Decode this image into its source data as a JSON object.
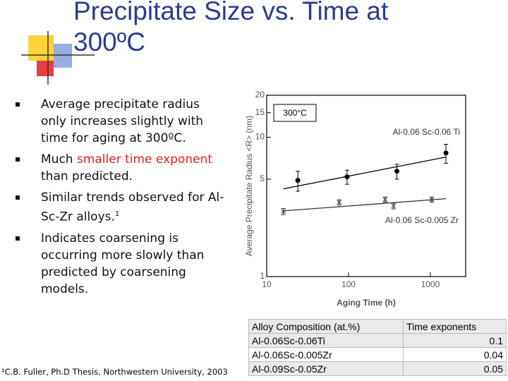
{
  "title": "Precipitate Size vs. Time at 300ºC",
  "bullets": [
    [
      "Average precipitate radius only increases slightly with time for aging at 300ºC."
    ],
    [
      "Much ",
      "smaller time exponent",
      " than predicted."
    ],
    [
      "Similar trends observed for Al-Sc-Zr alloys.",
      "1"
    ],
    [
      "Indicates coarsening is occurring more slowly than predicted by coarsening models."
    ]
  ],
  "footnote": "¹C.B. Fuller, Ph.D Thesis, Northwestern University, 2003",
  "table": {
    "header": [
      "Alloy Composition (at.%)",
      "Time exponents"
    ],
    "rows": [
      [
        "Al-0.06Sc-0.06Ti",
        "0.1"
      ],
      [
        "Al-0.06Sc-0.005Zr",
        "0.04"
      ],
      [
        "Al-0.09Sc-0.05Zr",
        "0.05"
      ]
    ]
  },
  "chart_data": {
    "type": "scatter",
    "annotation": "300°C",
    "x_label": "Aging Time (h)",
    "y_label": "Average Precipitate Radius <R> (nm)",
    "log_x": true,
    "log_y": true,
    "xlim": [
      10,
      2700
    ],
    "ylim": [
      1,
      20
    ],
    "xticks": [
      10,
      100,
      1000
    ],
    "yticks": [
      1,
      5,
      10,
      15,
      20
    ],
    "series": [
      {
        "name": "Al-0.06 Sc-0.06 Ti",
        "color": "#000000",
        "marker": "circle",
        "x": [
          24,
          96,
          390,
          1550
        ],
        "values": [
          4.9,
          5.2,
          5.7,
          7.7
        ],
        "errors": [
          0.8,
          0.6,
          0.7,
          1.2
        ],
        "fit": {
          "x": [
            16,
            1550
          ],
          "values": [
            4.26,
            7.2
          ]
        }
      },
      {
        "name": "Al-0.06 Sc-0.005 Zr",
        "color": "#333333",
        "marker": "cross",
        "x": [
          16,
          77,
          280,
          355,
          1040
        ],
        "values": [
          2.93,
          3.41,
          3.57,
          3.21,
          3.57
        ],
        "errors": [
          0.15,
          0.15,
          0.15,
          0.15,
          0.15
        ],
        "fit": {
          "x": [
            16,
            1550
          ],
          "values": [
            2.96,
            3.62
          ]
        }
      }
    ]
  }
}
